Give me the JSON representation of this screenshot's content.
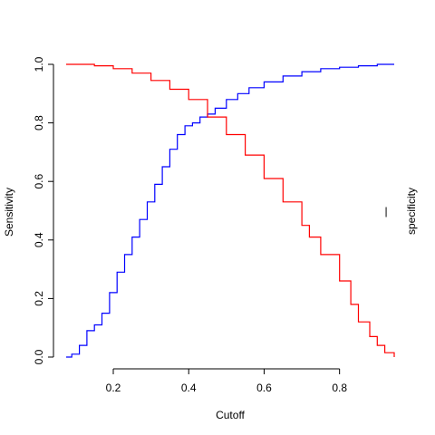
{
  "chart_data": {
    "type": "line",
    "title": "",
    "xlabel": "Cutoff",
    "ylabel": "Sensitivity",
    "y2label": "specificity",
    "xlim": [
      0.075,
      0.945
    ],
    "ylim": [
      0.0,
      1.0
    ],
    "x_ticks": [
      0.2,
      0.4,
      0.6,
      0.8
    ],
    "x_tick_labels": [
      "0.2",
      "0.4",
      "0.6",
      "0.8"
    ],
    "y_ticks": [
      0.0,
      0.2,
      0.4,
      0.6,
      0.8,
      1.0
    ],
    "y_tick_labels": [
      "0.0",
      "0.2",
      "0.4",
      "0.6",
      "0.8",
      "1.0"
    ],
    "y2_tick_labels": [
      "|"
    ],
    "grid": false,
    "series": [
      {
        "color": "#0000ff",
        "x": [
          0.075,
          0.09,
          0.11,
          0.13,
          0.15,
          0.17,
          0.19,
          0.21,
          0.23,
          0.25,
          0.27,
          0.29,
          0.31,
          0.33,
          0.35,
          0.37,
          0.39,
          0.41,
          0.43,
          0.45,
          0.47,
          0.5,
          0.53,
          0.56,
          0.6,
          0.65,
          0.7,
          0.75,
          0.8,
          0.85,
          0.9,
          0.945
        ],
        "y": [
          0.0,
          0.01,
          0.04,
          0.09,
          0.11,
          0.15,
          0.22,
          0.29,
          0.35,
          0.41,
          0.47,
          0.53,
          0.59,
          0.65,
          0.71,
          0.76,
          0.79,
          0.8,
          0.82,
          0.83,
          0.85,
          0.88,
          0.9,
          0.92,
          0.94,
          0.96,
          0.975,
          0.985,
          0.99,
          0.995,
          1.0,
          1.0
        ]
      },
      {
        "color": "#ff0000",
        "x": [
          0.075,
          0.1,
          0.15,
          0.2,
          0.25,
          0.3,
          0.35,
          0.4,
          0.45,
          0.5,
          0.55,
          0.6,
          0.65,
          0.7,
          0.72,
          0.75,
          0.8,
          0.83,
          0.85,
          0.88,
          0.9,
          0.92,
          0.945
        ],
        "y": [
          1.0,
          1.0,
          0.995,
          0.985,
          0.97,
          0.945,
          0.915,
          0.88,
          0.82,
          0.76,
          0.69,
          0.61,
          0.53,
          0.45,
          0.41,
          0.35,
          0.26,
          0.18,
          0.12,
          0.07,
          0.04,
          0.015,
          0.0
        ]
      }
    ]
  }
}
